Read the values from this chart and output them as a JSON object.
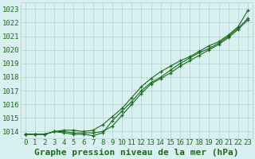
{
  "xlabel": "Graphe pression niveau de la mer (hPa)",
  "x": [
    0,
    1,
    2,
    3,
    4,
    5,
    6,
    7,
    8,
    9,
    10,
    11,
    12,
    13,
    14,
    15,
    16,
    17,
    18,
    19,
    20,
    21,
    22,
    23
  ],
  "line1": [
    1013.8,
    1013.8,
    1013.8,
    1014.0,
    1014.0,
    1013.9,
    1013.9,
    1013.9,
    1014.0,
    1014.4,
    1015.2,
    1016.0,
    1016.8,
    1017.5,
    1017.9,
    1018.3,
    1018.8,
    1019.2,
    1019.6,
    1020.0,
    1020.4,
    1020.9,
    1021.5,
    1022.2
  ],
  "line2": [
    1013.8,
    1013.8,
    1013.8,
    1014.0,
    1013.9,
    1013.8,
    1013.8,
    1013.7,
    1013.9,
    1014.8,
    1015.5,
    1016.2,
    1017.0,
    1017.6,
    1018.0,
    1018.5,
    1019.0,
    1019.4,
    1019.8,
    1020.1,
    1020.5,
    1021.0,
    1021.6,
    1022.3
  ],
  "line3": [
    1013.8,
    1013.8,
    1013.8,
    1014.0,
    1014.1,
    1014.1,
    1014.0,
    1014.1,
    1014.5,
    1015.1,
    1015.7,
    1016.5,
    1017.3,
    1017.9,
    1018.4,
    1018.8,
    1019.2,
    1019.5,
    1019.9,
    1020.3,
    1020.6,
    1021.1,
    1021.7,
    1022.9
  ],
  "line_color": "#1a6b1a",
  "marker": "+",
  "bg_color": "#d9f0f0",
  "grid_color": "#b8d0d0",
  "ylim": [
    1013.5,
    1023.5
  ],
  "yticks": [
    1014,
    1015,
    1016,
    1017,
    1018,
    1019,
    1020,
    1021,
    1022,
    1023
  ],
  "xticks": [
    0,
    1,
    2,
    3,
    4,
    5,
    6,
    7,
    8,
    9,
    10,
    11,
    12,
    13,
    14,
    15,
    16,
    17,
    18,
    19,
    20,
    21,
    22,
    23
  ],
  "xlabel_fontsize": 8,
  "tick_fontsize": 6.5,
  "marker_size": 3.5,
  "line_width": 0.8
}
